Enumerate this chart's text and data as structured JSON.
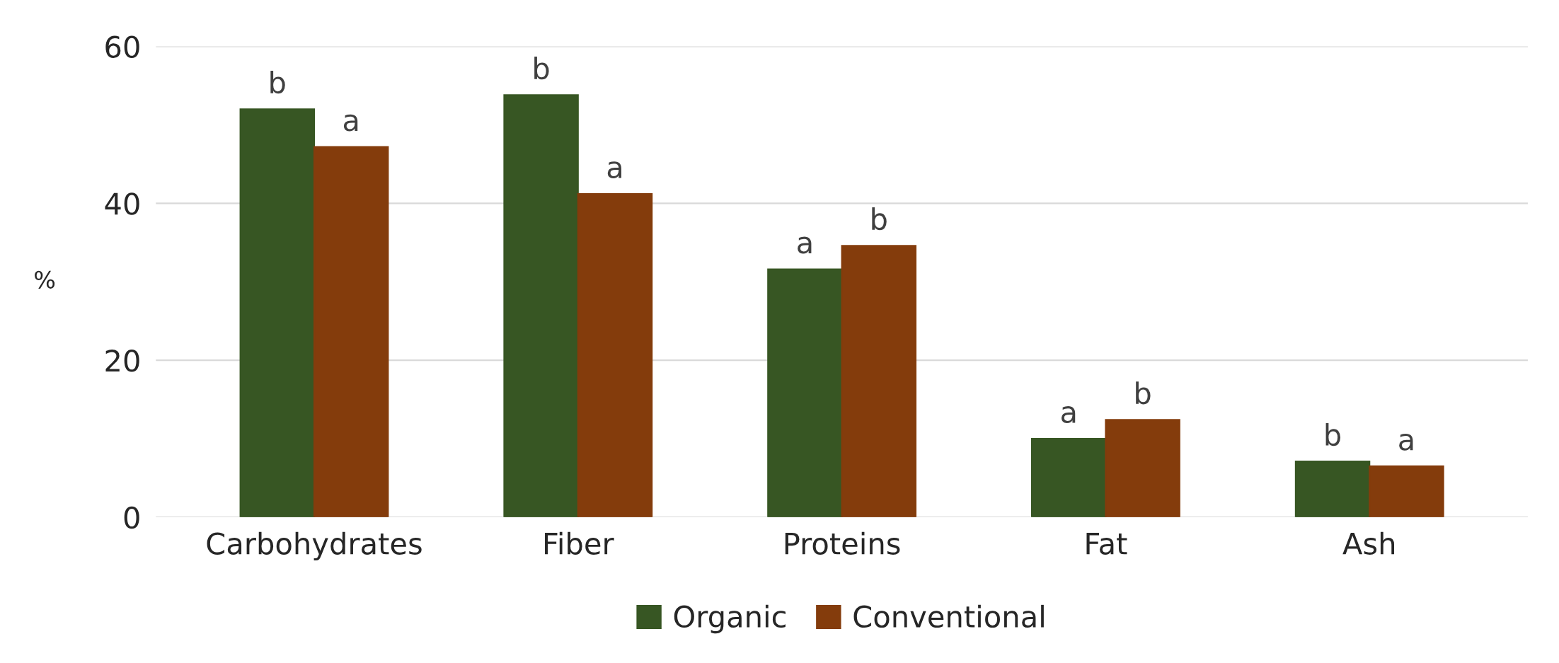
{
  "chart_data": {
    "type": "bar",
    "ylabel": "%",
    "categories": [
      "Carbohydrates",
      "Fiber",
      "Proteins",
      "Fat",
      "Ash"
    ],
    "series": [
      {
        "name": "Organic",
        "color": "#375623",
        "values": [
          52,
          53.8,
          31.6,
          10,
          7.1
        ],
        "value_labels": [
          "b",
          "b",
          "a",
          "a",
          "b"
        ]
      },
      {
        "name": "Conventional",
        "color": "#843c0c",
        "values": [
          47.2,
          41.2,
          34.6,
          12.4,
          6.5
        ],
        "value_labels": [
          "a",
          "a",
          "b",
          "b",
          "a"
        ]
      }
    ],
    "ylim": [
      0,
      60
    ],
    "yticks": [
      0,
      20,
      40,
      60
    ],
    "grid": "y",
    "legend": "bottom"
  }
}
